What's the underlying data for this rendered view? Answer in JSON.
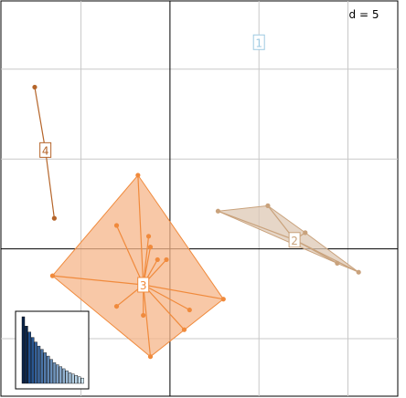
{
  "chart_data": {
    "type": "scatter",
    "title": "",
    "xlabel": "",
    "ylabel": "",
    "grid": true,
    "grid_step": 5,
    "grid_label": "d = 5",
    "xlim": [
      -9.5,
      12.8
    ],
    "ylim": [
      -8.2,
      13.8
    ],
    "origin": [
      0,
      0
    ],
    "groups": [
      {
        "label": "1",
        "color": "#9ecae1",
        "ellipse_fill": "none",
        "centroid": [
          5.0,
          11.5
        ],
        "points": []
      },
      {
        "label": "2",
        "color": "#c9a27c",
        "ellipse_fill": "#ddc8b4",
        "centroid": [
          7.0,
          0.5
        ],
        "points": [
          [
            2.7,
            2.1
          ],
          [
            5.5,
            2.4
          ],
          [
            9.4,
            -0.8
          ],
          [
            10.6,
            -1.3
          ],
          [
            7.6,
            0.9
          ]
        ]
      },
      {
        "label": "3",
        "color": "#f08a3c",
        "ellipse_fill": "#f6b58a",
        "centroid": [
          -1.5,
          -2.0
        ],
        "points": [
          [
            -1.8,
            4.1
          ],
          [
            -3.0,
            1.3
          ],
          [
            -6.6,
            -1.5
          ],
          [
            -1.2,
            0.7
          ],
          [
            -1.1,
            0.1
          ],
          [
            -0.2,
            -0.6
          ],
          [
            -0.7,
            -0.6
          ],
          [
            3.0,
            -2.8
          ],
          [
            1.1,
            -3.4
          ],
          [
            0.8,
            -4.5
          ],
          [
            -3.0,
            -3.2
          ],
          [
            -1.5,
            -3.7
          ],
          [
            -1.1,
            -6.0
          ]
        ]
      },
      {
        "label": "4",
        "color": "#b5652a",
        "ellipse_fill": "none",
        "centroid": [
          -7.0,
          5.5
        ],
        "points": [
          [
            -7.6,
            9.0
          ],
          [
            -6.5,
            1.7
          ]
        ]
      }
    ],
    "eigenvalues": {
      "values": [
        1.0,
        0.86,
        0.77,
        0.69,
        0.62,
        0.56,
        0.51,
        0.46,
        0.41,
        0.36,
        0.31,
        0.28,
        0.25,
        0.22,
        0.19,
        0.16,
        0.14,
        0.12,
        0.1,
        0.08
      ],
      "highlighted_count": 2,
      "colors": {
        "highlight": "#0b2448",
        "gradient_start": "#1f4e8c",
        "gradient_end": "#cfe7f5"
      }
    }
  }
}
